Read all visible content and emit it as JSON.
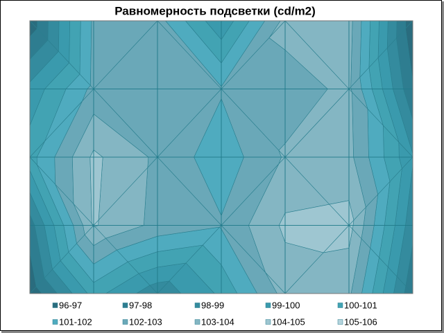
{
  "chart_data": {
    "type": "contour",
    "title": "Равномерность подсветки (cd/m2)",
    "z": [
      [
        96.3,
        102.2,
        102.4,
        99.2,
        103.3,
        103.4,
        96.2
      ],
      [
        99.3,
        102.3,
        102.2,
        102.1,
        102.6,
        103.2,
        97.1
      ],
      [
        100.6,
        104.2,
        102.8,
        101.4,
        103.1,
        103.3,
        99.1
      ],
      [
        97.5,
        104.1,
        102.7,
        102.1,
        104.2,
        104.4,
        98.3
      ],
      [
        96.2,
        100.4,
        98.3,
        100.2,
        103.4,
        103.2,
        97.2
      ]
    ],
    "bands": [
      {
        "label": "96-97",
        "min": 96,
        "max": 97,
        "color": "#2a6c7e"
      },
      {
        "label": "97-98",
        "min": 97,
        "max": 98,
        "color": "#2e7d90"
      },
      {
        "label": "98-99",
        "min": 98,
        "max": 99,
        "color": "#348b9e"
      },
      {
        "label": "99-100",
        "min": 99,
        "max": 100,
        "color": "#3a9aad"
      },
      {
        "label": "100-101",
        "min": 100,
        "max": 101,
        "color": "#42a3b3"
      },
      {
        "label": "101-102",
        "min": 101,
        "max": 102,
        "color": "#4fabbf"
      },
      {
        "label": "102-103",
        "min": 102,
        "max": 103,
        "color": "#6aa8b8"
      },
      {
        "label": "103-104",
        "min": 103,
        "max": 104,
        "color": "#84b6c3"
      },
      {
        "label": "104-105",
        "min": 104,
        "max": 105,
        "color": "#9ec6d1"
      },
      {
        "label": "105-106",
        "min": 105,
        "max": 106,
        "color": "#b4d4dd"
      }
    ]
  }
}
